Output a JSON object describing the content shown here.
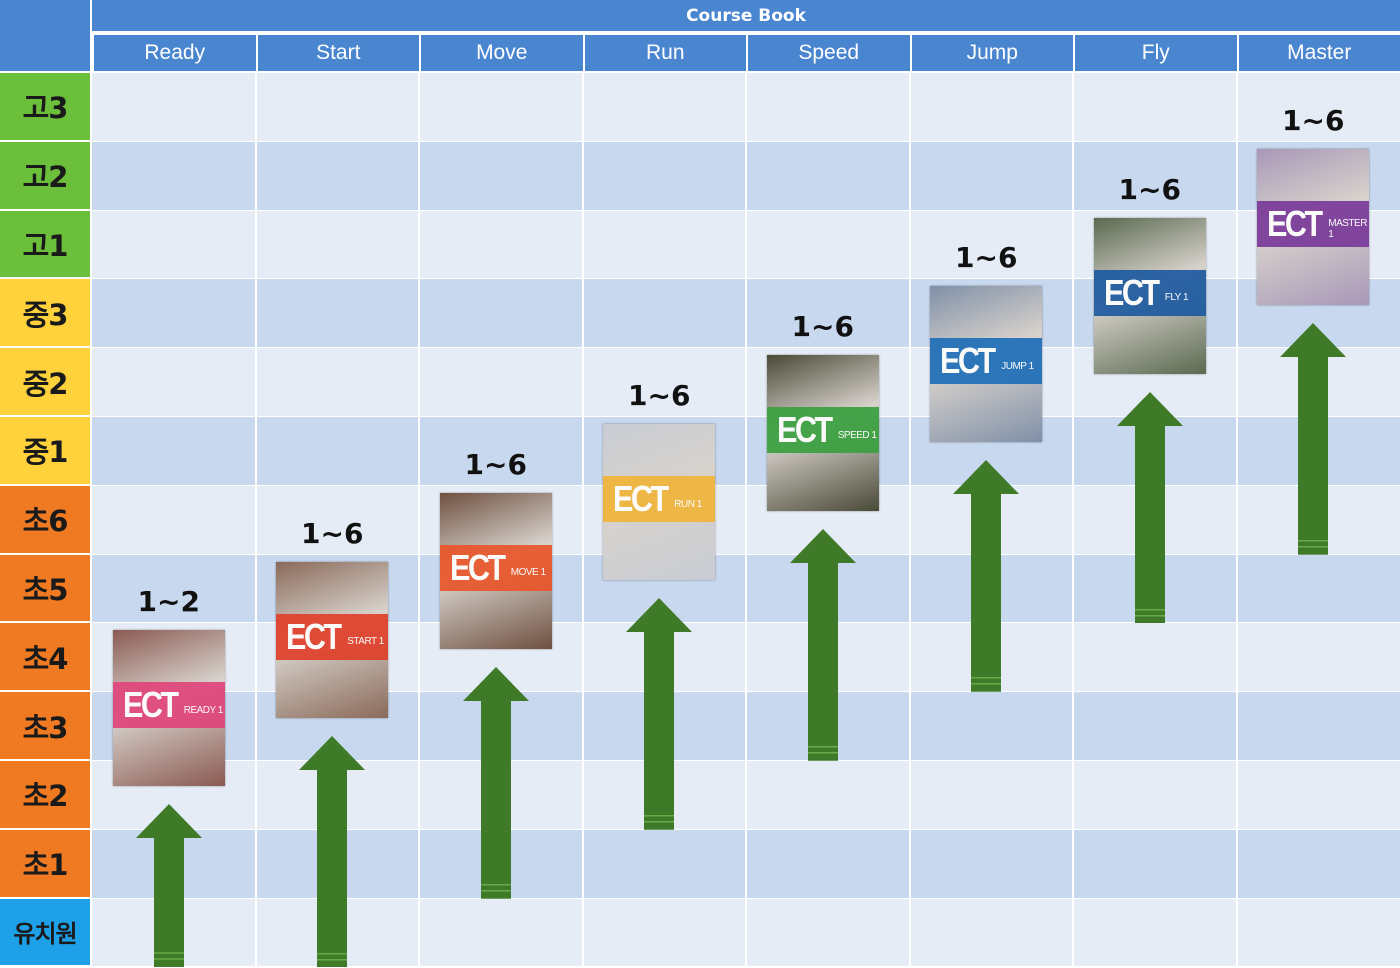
{
  "header": {
    "title": "Course Book"
  },
  "columns": [
    "Ready",
    "Start",
    "Move",
    "Run",
    "Speed",
    "Jump",
    "Fly",
    "Master"
  ],
  "rows": [
    {
      "label": "고3",
      "color": "#6cbf3a"
    },
    {
      "label": "고2",
      "color": "#6cbf3a"
    },
    {
      "label": "고1",
      "color": "#6cbf3a"
    },
    {
      "label": "중3",
      "color": "#ffd23c"
    },
    {
      "label": "중2",
      "color": "#ffd23c"
    },
    {
      "label": "중1",
      "color": "#ffd23c"
    },
    {
      "label": "초6",
      "color": "#f07a22"
    },
    {
      "label": "초5",
      "color": "#f07a22"
    },
    {
      "label": "초4",
      "color": "#f07a22"
    },
    {
      "label": "초3",
      "color": "#f07a22"
    },
    {
      "label": "초2",
      "color": "#f07a22"
    },
    {
      "label": "초1",
      "color": "#f07a22"
    },
    {
      "label": "유치원",
      "color": "#1ea0e8"
    }
  ],
  "books": [
    {
      "column": "Ready",
      "range": "1~2",
      "cover_title": "ECT",
      "cover_level": "READY 1",
      "band_color": "#e0457b",
      "bg_color": "#8a5a52",
      "start_row": "초4",
      "arrow_bottom": "유치원"
    },
    {
      "column": "Start",
      "range": "1~6",
      "cover_title": "ECT",
      "cover_level": "START 1",
      "band_color": "#e0402a",
      "bg_color": "#8a6a5a",
      "start_row": "초5",
      "arrow_bottom": "유치원"
    },
    {
      "column": "Move",
      "range": "1~6",
      "cover_title": "ECT",
      "cover_level": "MOVE 1",
      "band_color": "#e8562a",
      "bg_color": "#6e5040",
      "start_row": "초6",
      "arrow_bottom": "초1"
    },
    {
      "column": "Run",
      "range": "1~6",
      "cover_title": "ECT",
      "cover_level": "RUN 1",
      "band_color": "#f0b43a",
      "bg_color": "#c8ccd4",
      "start_row": "중1",
      "arrow_bottom": "초2"
    },
    {
      "column": "Speed",
      "range": "1~6",
      "cover_title": "ECT",
      "cover_level": "SPEED 1",
      "band_color": "#3aa040",
      "bg_color": "#4a4a38",
      "start_row": "중2",
      "arrow_bottom": "초3"
    },
    {
      "column": "Jump",
      "range": "1~6",
      "cover_title": "ECT",
      "cover_level": "JUMP 1",
      "band_color": "#1f6fb8",
      "bg_color": "#8090a8",
      "start_row": "중3",
      "arrow_bottom": "초4"
    },
    {
      "column": "Fly",
      "range": "1~6",
      "cover_title": "ECT",
      "cover_level": "FLY 1",
      "band_color": "#1e5aa0",
      "bg_color": "#5a6a50",
      "start_row": "고1",
      "arrow_bottom": "초5"
    },
    {
      "column": "Master",
      "range": "1~6",
      "cover_title": "ECT",
      "cover_level": "MASTER 1",
      "band_color": "#7a3a9a",
      "bg_color": "#a898b8",
      "start_row": "고2",
      "arrow_bottom": "초6"
    }
  ],
  "colors": {
    "header_blue": "#4a86d0",
    "band_light": "#e6ecf6",
    "band_dark": "#c8d8ee",
    "arrow_green": "#3f7a28"
  }
}
